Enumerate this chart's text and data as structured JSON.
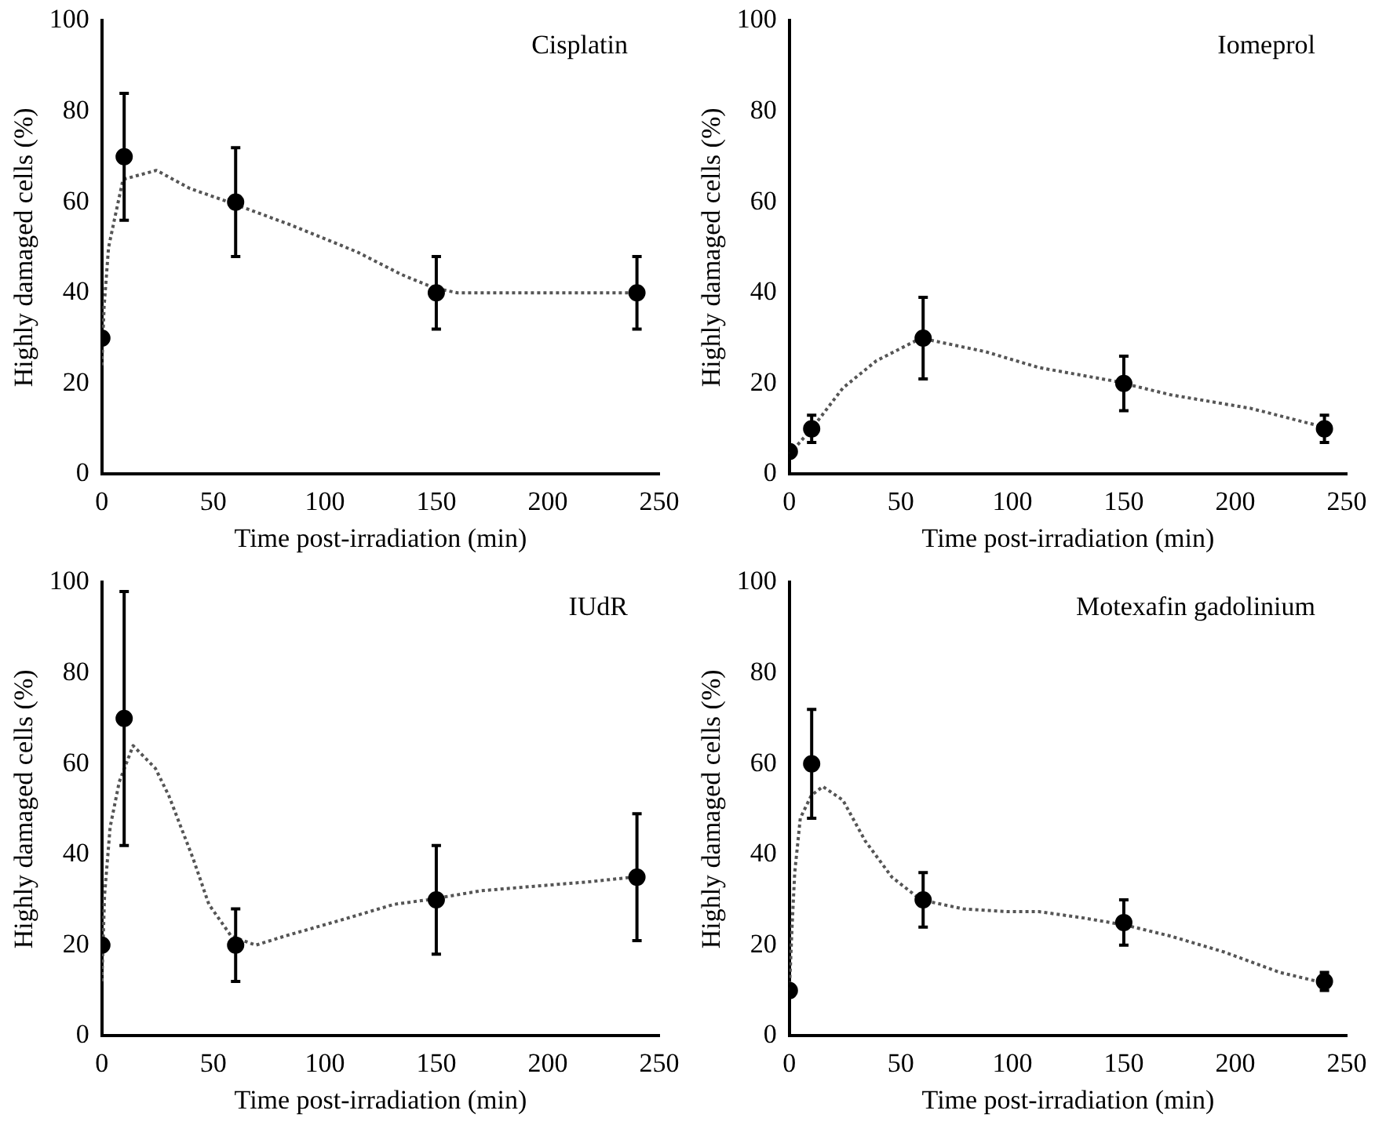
{
  "chart_data": [
    {
      "type": "scatter",
      "title": "Cisplatin",
      "xlabel": "Time post-irradiation (min)",
      "ylabel": "Highly damaged cells (%)",
      "xlim": [
        0,
        250
      ],
      "xticks": [
        0,
        50,
        100,
        150,
        200,
        250
      ],
      "ylim": [
        0,
        100
      ],
      "yticks": [
        0,
        20,
        40,
        60,
        80,
        100
      ],
      "grid": false,
      "legend": false,
      "series": [
        {
          "color": "#000000",
          "marker": "circle",
          "x": [
            0,
            10,
            60,
            150,
            240
          ],
          "values": [
            30,
            70,
            60,
            40,
            40
          ],
          "errors": [
            null,
            14,
            12,
            8,
            8
          ]
        },
        {
          "type": "line",
          "color": "#555555",
          "marker": "none",
          "line_style": "dotted",
          "x": [
            0,
            1,
            3,
            6,
            9.5,
            17,
            24.5,
            39.5,
            57,
            84.5,
            114.5,
            134.5,
            149.5,
            159.5,
            239.5
          ],
          "values": [
            24,
            37,
            50,
            57,
            65,
            66,
            67,
            63,
            60,
            55,
            49,
            44,
            41,
            40,
            40
          ]
        }
      ]
    },
    {
      "type": "scatter",
      "title": "Iomeprol",
      "xlabel": "Time post-irradiation (min)",
      "ylabel": "Highly damaged cells (%)",
      "xlim": [
        0,
        250
      ],
      "xticks": [
        0,
        50,
        100,
        150,
        200,
        250
      ],
      "ylim": [
        0,
        100
      ],
      "yticks": [
        0,
        20,
        40,
        60,
        80,
        100
      ],
      "grid": false,
      "legend": false,
      "series": [
        {
          "color": "#000000",
          "marker": "circle",
          "x": [
            0,
            10,
            60,
            150,
            240
          ],
          "values": [
            5,
            10,
            30,
            20,
            10
          ],
          "errors": [
            null,
            3,
            9,
            6,
            3
          ]
        },
        {
          "type": "line",
          "color": "#555555",
          "marker": "none",
          "line_style": "dotted",
          "x": [
            0,
            10,
            24,
            39,
            59,
            88,
            112,
            146,
            171,
            207,
            238
          ],
          "values": [
            4.4,
            10,
            19,
            25,
            30,
            27,
            23.5,
            20.5,
            17.5,
            14.5,
            10.6
          ]
        }
      ]
    },
    {
      "type": "scatter",
      "title": "IUdR",
      "xlabel": "Time post-irradiation (min)",
      "ylabel": "Highly damaged cells (%)",
      "xlim": [
        0,
        250
      ],
      "xticks": [
        0,
        50,
        100,
        150,
        200,
        250
      ],
      "ylim": [
        0,
        100
      ],
      "yticks": [
        0,
        20,
        40,
        60,
        80,
        100
      ],
      "grid": false,
      "legend": false,
      "series": [
        {
          "color": "#000000",
          "marker": "circle",
          "x": [
            0,
            10,
            60,
            150,
            240
          ],
          "values": [
            20,
            70,
            20,
            30,
            35
          ],
          "errors": [
            null,
            28,
            8,
            12,
            14
          ]
        },
        {
          "type": "line",
          "color": "#555555",
          "marker": "none",
          "line_style": "dotted",
          "x": [
            0,
            1.2,
            3.7,
            7.8,
            14,
            24,
            30,
            41,
            48,
            58,
            69,
            82,
            107,
            131,
            146,
            170,
            194,
            219,
            238
          ],
          "values": [
            12,
            31,
            46,
            56,
            64,
            59,
            53,
            39,
            29,
            22,
            20,
            22,
            25.5,
            29,
            30,
            32,
            33,
            34,
            35
          ]
        }
      ]
    },
    {
      "type": "scatter",
      "title": "Motexafin gadolinium",
      "xlabel": "Time post-irradiation (min)",
      "ylabel": "Highly damaged cells (%)",
      "xlim": [
        0,
        250
      ],
      "xticks": [
        0,
        50,
        100,
        150,
        200,
        250
      ],
      "ylim": [
        0,
        100
      ],
      "yticks": [
        0,
        20,
        40,
        60,
        80,
        100
      ],
      "grid": false,
      "legend": false,
      "series": [
        {
          "color": "#000000",
          "marker": "circle",
          "x": [
            0,
            10,
            60,
            150,
            240
          ],
          "values": [
            10,
            60,
            30,
            25,
            12
          ],
          "errors": [
            null,
            12,
            6,
            5,
            2
          ]
        },
        {
          "type": "line",
          "color": "#555555",
          "marker": "none",
          "line_style": "dotted",
          "x": [
            0,
            1.2,
            2.4,
            4.9,
            9.8,
            15,
            24,
            34,
            46,
            59,
            78,
            98,
            112,
            132,
            151,
            171,
            195,
            220,
            237
          ],
          "values": [
            10,
            24,
            36,
            48,
            53,
            55,
            52,
            43,
            35,
            30,
            28,
            27.4,
            27.4,
            26,
            24.4,
            22,
            18.5,
            14,
            12
          ]
        }
      ]
    }
  ]
}
